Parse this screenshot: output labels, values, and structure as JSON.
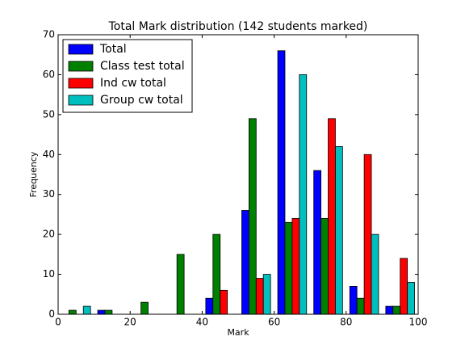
{
  "chart_data": {
    "type": "histogram",
    "title": "Total Mark distribution (142 students marked)",
    "xlabel": "Mark",
    "ylabel": "Frequency",
    "bins": [
      0,
      10,
      20,
      30,
      40,
      50,
      60,
      70,
      80,
      90,
      100
    ],
    "series": [
      {
        "name": "Total",
        "color": "#0000ff",
        "values": [
          0,
          1,
          0,
          0,
          4,
          26,
          66,
          36,
          7,
          2
        ]
      },
      {
        "name": "Class test total",
        "color": "#008000",
        "values": [
          1,
          1,
          3,
          15,
          20,
          49,
          23,
          24,
          4,
          2
        ]
      },
      {
        "name": "Ind cw total",
        "color": "#ff0000",
        "values": [
          0,
          0,
          0,
          0,
          6,
          9,
          24,
          49,
          40,
          14
        ]
      },
      {
        "name": "Group cw total",
        "color": "#00bfbf",
        "values": [
          2,
          0,
          0,
          0,
          0,
          10,
          60,
          42,
          20,
          8
        ]
      }
    ],
    "xlim": [
      0,
      100
    ],
    "xticks": [
      0,
      20,
      40,
      60,
      80,
      100
    ],
    "ylim": [
      0,
      70
    ],
    "yticks": [
      0,
      10,
      20,
      30,
      40,
      50,
      60,
      70
    ],
    "legend": "upper left"
  }
}
